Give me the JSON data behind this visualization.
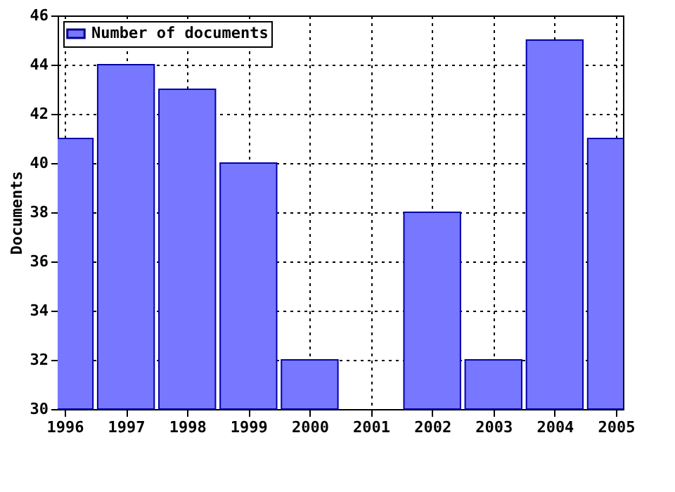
{
  "chart_data": {
    "type": "bar",
    "ylabel": "Documents",
    "x": [
      1996,
      1997,
      1998,
      1999,
      2000,
      2001,
      2002,
      2003,
      2004,
      2005
    ],
    "series": [
      {
        "name": "Number of documents",
        "color": "#7777ff",
        "values": [
          41,
          44,
          43,
          40,
          32,
          null,
          38,
          32,
          45,
          41
        ]
      }
    ],
    "xlim": [
      1996,
      2005
    ],
    "xticks": [
      1996,
      1997,
      1998,
      1999,
      2000,
      2001,
      2002,
      2003,
      2004,
      2005
    ],
    "ylim": [
      30,
      46
    ],
    "yticks": [
      30,
      32,
      34,
      36,
      38,
      40,
      42,
      44,
      46
    ],
    "grid": true,
    "legend": "top left"
  }
}
